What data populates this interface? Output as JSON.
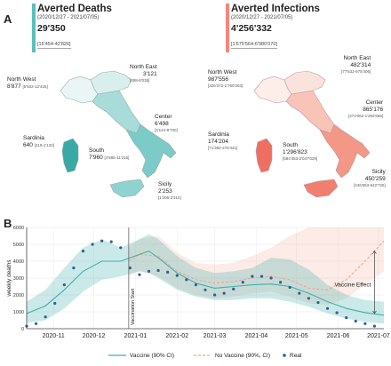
{
  "panelA": {
    "letter": "A",
    "left": {
      "title": "Averted Deaths",
      "range": "(2020/12/27 - 2021/07/05)",
      "value": "29'350",
      "ci": "[16'454-42'826]",
      "color": "#5bbfbd",
      "regions": {
        "north_west": {
          "name": "North West",
          "value": "8'877",
          "ci": "[5'502-12'425]"
        },
        "north_east": {
          "name": "North East",
          "value": "3'121",
          "ci": "[498-6'035]"
        },
        "center": {
          "name": "Center",
          "value": "6'498",
          "ci": "[4'144-8'700]"
        },
        "sardinia": {
          "name": "Sardinia",
          "value": "640",
          "ci": "[219-1'132]"
        },
        "south": {
          "name": "South",
          "value": "7'960",
          "ci": "[4'885-11'216]"
        },
        "sicily": {
          "name": "Sicily",
          "value": "2'253",
          "ci": "[1'206-3'314]"
        }
      }
    },
    "right": {
      "title": "Averted Infections",
      "range": "(2020/12/27 - 2021/07/05)",
      "value": "4'256'332",
      "ci": "[1'675'564-6'980'070]",
      "color": "#f4877b",
      "regions": {
        "north_west": {
          "name": "North West",
          "value": "987'556",
          "ci": "[326'372-1'760'203]"
        },
        "north_east": {
          "name": "North East",
          "value": "482'314",
          "ci": "[77'632-975'406]"
        },
        "center": {
          "name": "Center",
          "value": "865'176",
          "ci": "[474'062-1'282'665]"
        },
        "sardinia": {
          "name": "Sardinia",
          "value": "174'204",
          "ci": "[71'392-276'441]"
        },
        "south": {
          "name": "South",
          "value": "1'296'823",
          "ci": "[584'453-2'047'629]"
        },
        "sicily": {
          "name": "Sicily",
          "value": "450'259",
          "ci": "[246'653-642'726]"
        }
      }
    }
  },
  "panelB": {
    "letter": "B",
    "annotations": {
      "vaccination_start": "Vaccination Start",
      "vaccine_effect": "Vaccine Effect"
    },
    "legend": {
      "vaccine": "Vaccine (90% CI)",
      "no_vaccine": "No Vaccine (90%, CI)",
      "real": "Real"
    },
    "colors": {
      "vaccine": "#3fb1ad",
      "no_vaccine": "#f2a48c",
      "real": "#2f5f95"
    }
  },
  "chart_data": {
    "type": "line",
    "ylabel": "weekly deaths",
    "ylim": [
      0,
      6000
    ],
    "yticks": [
      0,
      1000,
      2000,
      3000,
      4000,
      5000,
      6000
    ],
    "xlim": [
      "2020-10-12",
      "2021-07-05"
    ],
    "xticks": [
      "2020-11",
      "2020-12",
      "2021-01",
      "2021-02",
      "2021-03",
      "2021-04",
      "2021-05",
      "2021-06",
      "2021-07"
    ],
    "vaccination_start": "2020-12-27",
    "series": [
      {
        "name": "Vaccine (90% CI)",
        "x": [
          "2020-10-12",
          "2020-10-26",
          "2020-11-09",
          "2020-11-23",
          "2020-12-07",
          "2020-12-21",
          "2021-01-04",
          "2021-01-11",
          "2021-01-18",
          "2021-02-01",
          "2021-02-15",
          "2021-03-01",
          "2021-03-15",
          "2021-03-29",
          "2021-04-12",
          "2021-04-26",
          "2021-05-10",
          "2021-05-24",
          "2021-06-07",
          "2021-06-21",
          "2021-07-05"
        ],
        "values": [
          900,
          1350,
          2300,
          3400,
          4000,
          4000,
          4400,
          4600,
          4200,
          3300,
          2700,
          2400,
          2500,
          2600,
          2650,
          2500,
          2100,
          1600,
          1200,
          950,
          800
        ],
        "lower": [
          350,
          500,
          1200,
          2200,
          2900,
          3100,
          3400,
          3300,
          3000,
          2300,
          1900,
          1700,
          1700,
          1800,
          1800,
          1600,
          1300,
          900,
          600,
          400,
          300
        ],
        "upper": [
          1600,
          2300,
          3600,
          4800,
          5300,
          4800,
          5300,
          5600,
          5300,
          4300,
          3600,
          3300,
          3400,
          3600,
          4200,
          4100,
          3500,
          2600,
          2000,
          1700,
          1600
        ]
      },
      {
        "name": "No Vaccine (90%, CI)",
        "x": [
          "2020-12-27",
          "2021-01-04",
          "2021-01-18",
          "2021-02-01",
          "2021-02-15",
          "2021-03-01",
          "2021-03-15",
          "2021-03-29",
          "2021-04-12",
          "2021-04-26",
          "2021-05-10",
          "2021-05-24",
          "2021-06-07",
          "2021-06-21",
          "2021-07-05"
        ],
        "values": [
          4000,
          4400,
          4300,
          3400,
          2900,
          2700,
          2800,
          3000,
          3100,
          2900,
          2400,
          2300,
          2900,
          4000,
          5200
        ],
        "lower": [
          3100,
          3400,
          3100,
          2400,
          2000,
          1800,
          1900,
          2100,
          2200,
          1900,
          1500,
          1400,
          1800,
          2600,
          3400
        ],
        "upper": [
          4800,
          5300,
          5500,
          4500,
          3900,
          3800,
          3900,
          4300,
          4800,
          5500,
          6000,
          6000,
          6000,
          6000,
          6000
        ]
      },
      {
        "name": "Real",
        "x": [
          "2020-10-12",
          "2020-10-19",
          "2020-10-26",
          "2020-11-02",
          "2020-11-09",
          "2020-11-16",
          "2020-11-23",
          "2020-11-30",
          "2020-12-07",
          "2020-12-14",
          "2020-12-21",
          "2020-12-28",
          "2021-01-04",
          "2021-01-11",
          "2021-01-18",
          "2021-01-25",
          "2021-02-01",
          "2021-02-08",
          "2021-02-15",
          "2021-02-22",
          "2021-03-01",
          "2021-03-08",
          "2021-03-15",
          "2021-03-22",
          "2021-03-29",
          "2021-04-05",
          "2021-04-12",
          "2021-04-19",
          "2021-04-26",
          "2021-05-03",
          "2021-05-10",
          "2021-05-17",
          "2021-05-24",
          "2021-05-31",
          "2021-06-07",
          "2021-06-14",
          "2021-06-21",
          "2021-06-28"
        ],
        "values": [
          150,
          300,
          700,
          1500,
          2600,
          3600,
          4600,
          5000,
          5200,
          5150,
          4800,
          3600,
          3200,
          3400,
          3450,
          3350,
          3150,
          2900,
          2600,
          2300,
          2000,
          2100,
          2350,
          2750,
          3100,
          3100,
          3000,
          2750,
          2450,
          2100,
          1800,
          1550,
          1200,
          950,
          650,
          450,
          300,
          150
        ]
      }
    ]
  }
}
